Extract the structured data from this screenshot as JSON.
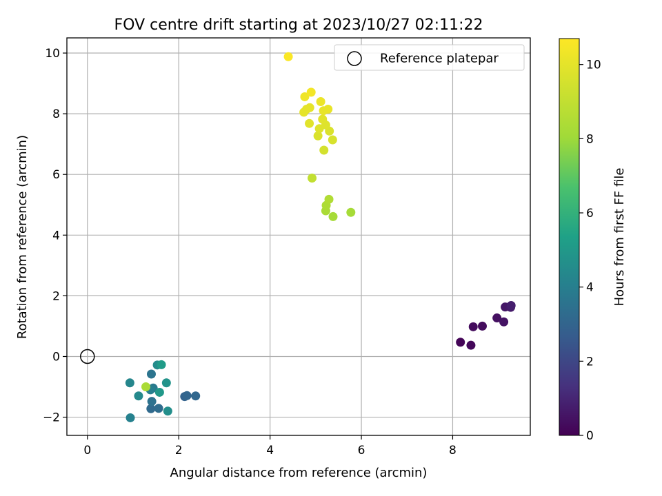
{
  "chart_data": {
    "type": "scatter",
    "title": "FOV centre drift starting at 2023/10/27 02:11:22",
    "xlabel": "Angular distance from reference (arcmin)",
    "ylabel": "Rotation from reference (arcmin)",
    "xlim": [
      -0.45,
      9.7
    ],
    "ylim": [
      -2.6,
      10.5
    ],
    "x_ticks": [
      0,
      2,
      4,
      6,
      8
    ],
    "y_ticks": [
      -2,
      0,
      2,
      4,
      6,
      8,
      10
    ],
    "grid": true,
    "legend": {
      "placement": "upper right",
      "entries": [
        "Reference platepar"
      ]
    },
    "reference_point": {
      "x": 0,
      "y": 0,
      "label": "Reference platepar"
    },
    "colorbar": {
      "label": "Hours from first FF file",
      "range": [
        0,
        10.7
      ],
      "ticks": [
        0,
        2,
        4,
        6,
        8,
        10
      ],
      "colormap": "viridis"
    },
    "points": [
      {
        "x": 8.17,
        "y": 0.47,
        "c": 0.1
      },
      {
        "x": 8.4,
        "y": 0.37,
        "c": 0.2
      },
      {
        "x": 8.45,
        "y": 0.98,
        "c": 0.3
      },
      {
        "x": 8.65,
        "y": 1.0,
        "c": 0.3
      },
      {
        "x": 8.97,
        "y": 1.27,
        "c": 0.4
      },
      {
        "x": 9.12,
        "y": 1.14,
        "c": 0.5
      },
      {
        "x": 9.15,
        "y": 1.63,
        "c": 0.6
      },
      {
        "x": 9.27,
        "y": 1.62,
        "c": 0.7
      },
      {
        "x": 9.28,
        "y": 1.68,
        "c": 0.8
      },
      {
        "x": 2.13,
        "y": -1.32,
        "c": 2.9
      },
      {
        "x": 2.18,
        "y": -1.29,
        "c": 3.0
      },
      {
        "x": 2.37,
        "y": -1.3,
        "c": 3.1
      },
      {
        "x": 1.39,
        "y": -1.72,
        "c": 3.2
      },
      {
        "x": 1.56,
        "y": -1.71,
        "c": 3.3
      },
      {
        "x": 1.41,
        "y": -1.48,
        "c": 3.5
      },
      {
        "x": 1.4,
        "y": -0.58,
        "c": 3.6
      },
      {
        "x": 1.44,
        "y": -1.04,
        "c": 3.8
      },
      {
        "x": 1.38,
        "y": -1.1,
        "c": 4.0
      },
      {
        "x": 0.94,
        "y": -2.02,
        "c": 4.1
      },
      {
        "x": 0.93,
        "y": -0.87,
        "c": 4.3
      },
      {
        "x": 1.12,
        "y": -1.3,
        "c": 4.4
      },
      {
        "x": 1.53,
        "y": -0.28,
        "c": 4.5
      },
      {
        "x": 1.76,
        "y": -1.8,
        "c": 4.6
      },
      {
        "x": 1.73,
        "y": -0.87,
        "c": 4.8
      },
      {
        "x": 1.58,
        "y": -1.18,
        "c": 5.0
      },
      {
        "x": 1.62,
        "y": -0.27,
        "c": 5.1
      },
      {
        "x": 1.28,
        "y": -1.0,
        "c": 8.3
      },
      {
        "x": 5.77,
        "y": 4.75,
        "c": 8.2
      },
      {
        "x": 5.38,
        "y": 4.61,
        "c": 8.2
      },
      {
        "x": 5.22,
        "y": 4.8,
        "c": 8.3
      },
      {
        "x": 5.23,
        "y": 4.98,
        "c": 8.4
      },
      {
        "x": 5.29,
        "y": 5.18,
        "c": 8.5
      },
      {
        "x": 4.92,
        "y": 5.88,
        "c": 9.0
      },
      {
        "x": 5.18,
        "y": 6.8,
        "c": 9.5
      },
      {
        "x": 5.37,
        "y": 7.14,
        "c": 9.6
      },
      {
        "x": 5.05,
        "y": 7.27,
        "c": 9.7
      },
      {
        "x": 5.3,
        "y": 7.43,
        "c": 9.7
      },
      {
        "x": 5.08,
        "y": 7.51,
        "c": 9.8
      },
      {
        "x": 5.22,
        "y": 7.63,
        "c": 9.8
      },
      {
        "x": 4.86,
        "y": 7.68,
        "c": 9.9
      },
      {
        "x": 5.15,
        "y": 7.82,
        "c": 9.9
      },
      {
        "x": 4.74,
        "y": 8.05,
        "c": 10.0
      },
      {
        "x": 4.8,
        "y": 8.15,
        "c": 10.0
      },
      {
        "x": 4.87,
        "y": 8.2,
        "c": 10.0
      },
      {
        "x": 5.17,
        "y": 8.1,
        "c": 10.1
      },
      {
        "x": 5.27,
        "y": 8.15,
        "c": 10.1
      },
      {
        "x": 5.11,
        "y": 8.4,
        "c": 10.2
      },
      {
        "x": 4.76,
        "y": 8.56,
        "c": 10.3
      },
      {
        "x": 4.9,
        "y": 8.71,
        "c": 10.4
      },
      {
        "x": 4.4,
        "y": 9.88,
        "c": 10.6
      }
    ]
  }
}
